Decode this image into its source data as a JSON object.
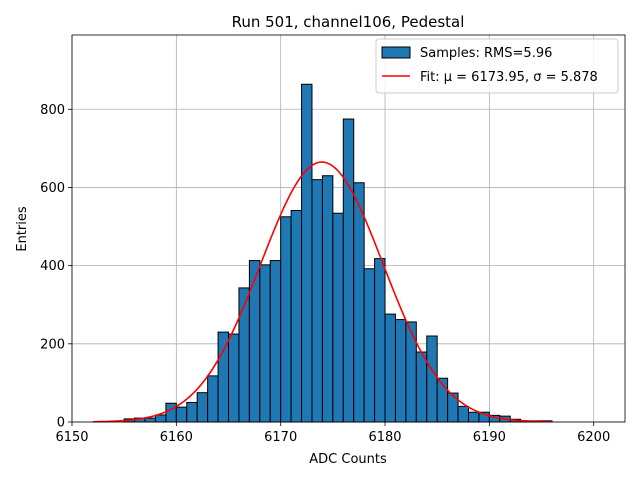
{
  "chart_data": {
    "type": "bar",
    "title": "Run 501, channel106, Pedestal",
    "xlabel": "ADC Counts",
    "ylabel": "Entries",
    "xlim": [
      6150,
      6203
    ],
    "ylim": [
      0,
      990
    ],
    "x_ticks": [
      "6150",
      "6160",
      "6170",
      "6180",
      "6190",
      "6200"
    ],
    "y_ticks": [
      "0",
      "200",
      "400",
      "600",
      "800"
    ],
    "grid": true,
    "legend_position": "top-right",
    "colors": {
      "bar_fill": "#1f77b4",
      "bar_edge": "#000000",
      "fit_line": "#ff0000"
    },
    "histogram": {
      "name": "Samples: RMS=5.96",
      "bin_starts": [
        6155.0,
        6156.0,
        6157.0,
        6158.0,
        6159.0,
        6160.0,
        6161.0,
        6162.0,
        6163.0,
        6164.0,
        6165.0,
        6166.0,
        6167.0,
        6168.0,
        6169.0,
        6170.0,
        6171.0,
        6172.0,
        6173.0,
        6174.0,
        6175.0,
        6176.0,
        6177.0,
        6178.0,
        6179.0,
        6180.0,
        6181.0,
        6182.0,
        6183.0,
        6184.0,
        6185.0,
        6186.0,
        6187.0,
        6188.0,
        6189.0,
        6190.0,
        6191.0,
        6192.0,
        6193.0,
        6194.0,
        6195.0
      ],
      "bin_width": 1.0,
      "values": [
        8,
        10,
        10,
        18,
        48,
        38,
        50,
        75,
        118,
        230,
        225,
        343,
        413,
        402,
        413,
        525,
        541,
        864,
        620,
        630,
        534,
        775,
        612,
        392,
        418,
        276,
        262,
        256,
        179,
        220,
        112,
        74,
        40,
        25,
        25,
        17,
        15,
        7,
        3,
        3,
        3
      ]
    },
    "fit": {
      "name": "Fit: μ = 6173.95, σ = 5.878",
      "mu": 6173.95,
      "sigma": 5.878,
      "amplitude": 665,
      "x_range": [
        6152,
        6196
      ]
    }
  }
}
